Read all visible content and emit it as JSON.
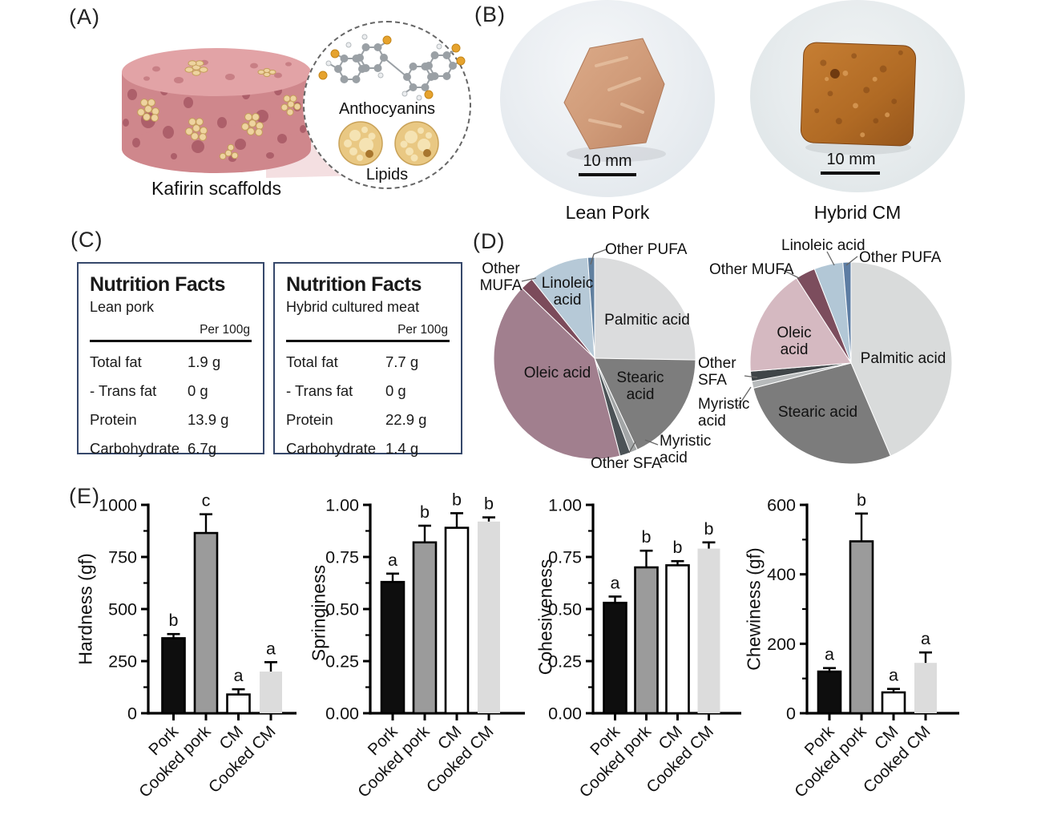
{
  "panels": {
    "a": {
      "label": "(A)",
      "caption": "Kafirin scaffolds",
      "anthocyanins_label": "Anthocyanins",
      "lipids_label": "Lipids"
    },
    "b": {
      "label": "(B)",
      "photos": [
        {
          "caption": "Lean Pork",
          "scale_bar": "10 mm"
        },
        {
          "caption": "Hybrid CM",
          "scale_bar": "10 mm"
        }
      ]
    },
    "c": {
      "label": "(C)",
      "tables": [
        {
          "title": "Nutrition Facts",
          "subtitle": "Lean pork",
          "unit_header": "Per 100g",
          "rows": [
            [
              "Total fat",
              "1.9 g"
            ],
            [
              "- Trans fat",
              "0 g"
            ],
            [
              "Protein",
              "13.9 g"
            ],
            [
              "Carbohydrate",
              "6.7g"
            ]
          ]
        },
        {
          "title": "Nutrition Facts",
          "subtitle": "Hybrid cultured meat",
          "unit_header": "Per 100g",
          "rows": [
            [
              "Total fat",
              "7.7 g"
            ],
            [
              "- Trans fat",
              "0 g"
            ],
            [
              "Protein",
              "22.9 g"
            ],
            [
              "Carbohydrate",
              "1.4 g"
            ]
          ]
        }
      ]
    },
    "d": {
      "label": "(D)"
    },
    "e": {
      "label": "(E)"
    }
  },
  "chart_data": [
    {
      "id": "fatty-acid-pie-lean-pork",
      "type": "pie",
      "labels": [
        "Palmitic acid",
        "Stearic acid",
        "Myristic acid",
        "Other SFA",
        "Oleic acid",
        "Other MUFA",
        "Linoleic acid",
        "Other PUFA"
      ],
      "values": [
        25.3,
        17.8,
        1.2,
        1.7,
        41.3,
        2.1,
        9.6,
        1.1
      ],
      "colors": [
        "#dbdcdd",
        "#7d7d7d",
        "#a3a6a7",
        "#4c5357",
        "#a17f8e",
        "#7c4b5b",
        "#b6c9d7",
        "#61809f"
      ],
      "start_angle_deg": 0,
      "direction": "clockwise",
      "legend_position": "labels-on-chart"
    },
    {
      "id": "fatty-acid-pie-hybrid-cm",
      "type": "pie",
      "labels": [
        "Palmitic acid",
        "Stearic acid",
        "Myristic acid",
        "Other SFA",
        "Oleic acid",
        "Other MUFA",
        "Linoleic acid",
        "Other PUFA"
      ],
      "values": [
        43.6,
        27.4,
        1.1,
        1.6,
        17.2,
        3.2,
        4.6,
        1.3
      ],
      "colors": [
        "#d9dbdb",
        "#7c7c7c",
        "#b7babb",
        "#3f4548",
        "#d5b9c1",
        "#7c4d5d",
        "#b2c7d6",
        "#5d7da3"
      ],
      "start_angle_deg": 0,
      "direction": "clockwise",
      "legend_position": "labels-on-chart"
    },
    {
      "id": "hardness",
      "type": "bar",
      "ylabel": "Hardness (gf)",
      "ylim": [
        0,
        1000
      ],
      "yticks": [
        0,
        250,
        500,
        750,
        1000
      ],
      "minor_ticks": [
        125,
        375,
        625,
        875
      ],
      "tick_decimals": 0,
      "categories": [
        "Pork",
        "Cooked pork",
        "CM",
        "Cooked CM"
      ],
      "values": [
        360,
        865,
        90,
        200
      ],
      "errors": [
        20,
        90,
        25,
        45
      ],
      "sig_letters": [
        "b",
        "c",
        "a",
        "a"
      ],
      "bar_colors": [
        "#0e0e0e",
        "#9b9b9b",
        "#ffffff",
        "#dcdcdc"
      ],
      "bar_borders": [
        "#000000",
        "#000000",
        "#000000",
        "none"
      ]
    },
    {
      "id": "springiness",
      "type": "bar",
      "ylabel": "Springiness",
      "ylim": [
        0,
        1.0
      ],
      "yticks": [
        0,
        0.25,
        0.5,
        0.75,
        1.0
      ],
      "minor_ticks": [
        0.125,
        0.375,
        0.625,
        0.875
      ],
      "tick_decimals": 2,
      "categories": [
        "Pork",
        "Cooked pork",
        "CM",
        "Cooked CM"
      ],
      "values": [
        0.63,
        0.82,
        0.89,
        0.92
      ],
      "errors": [
        0.04,
        0.08,
        0.07,
        0.02
      ],
      "sig_letters": [
        "a",
        "b",
        "b",
        "b"
      ],
      "bar_colors": [
        "#0e0e0e",
        "#9b9b9b",
        "#ffffff",
        "#dcdcdc"
      ],
      "bar_borders": [
        "#000000",
        "#000000",
        "#000000",
        "none"
      ]
    },
    {
      "id": "cohesiveness",
      "type": "bar",
      "ylabel": "Cohesiveness",
      "ylim": [
        0,
        1.0
      ],
      "yticks": [
        0,
        0.25,
        0.5,
        0.75,
        1.0
      ],
      "minor_ticks": [
        0.125,
        0.375,
        0.625,
        0.875
      ],
      "tick_decimals": 2,
      "categories": [
        "Pork",
        "Cooked pork",
        "CM",
        "Cooked CM"
      ],
      "values": [
        0.53,
        0.7,
        0.71,
        0.79
      ],
      "errors": [
        0.03,
        0.08,
        0.02,
        0.03
      ],
      "sig_letters": [
        "a",
        "b",
        "b",
        "b"
      ],
      "bar_colors": [
        "#0e0e0e",
        "#9b9b9b",
        "#ffffff",
        "#dcdcdc"
      ],
      "bar_borders": [
        "#000000",
        "#000000",
        "#000000",
        "none"
      ]
    },
    {
      "id": "chewiness",
      "type": "bar",
      "ylabel": "Chewiness (gf)",
      "ylim": [
        0,
        600
      ],
      "yticks": [
        0,
        200,
        400,
        600
      ],
      "minor_ticks": [
        100,
        300,
        500
      ],
      "tick_decimals": 0,
      "categories": [
        "Pork",
        "Cooked pork",
        "CM",
        "Cooked CM"
      ],
      "values": [
        120,
        495,
        60,
        145
      ],
      "errors": [
        10,
        80,
        10,
        30
      ],
      "sig_letters": [
        "a",
        "b",
        "a",
        "a"
      ],
      "bar_colors": [
        "#0e0e0e",
        "#9b9b9b",
        "#ffffff",
        "#dcdcdc"
      ],
      "bar_borders": [
        "#000000",
        "#000000",
        "#000000",
        "none"
      ]
    }
  ]
}
